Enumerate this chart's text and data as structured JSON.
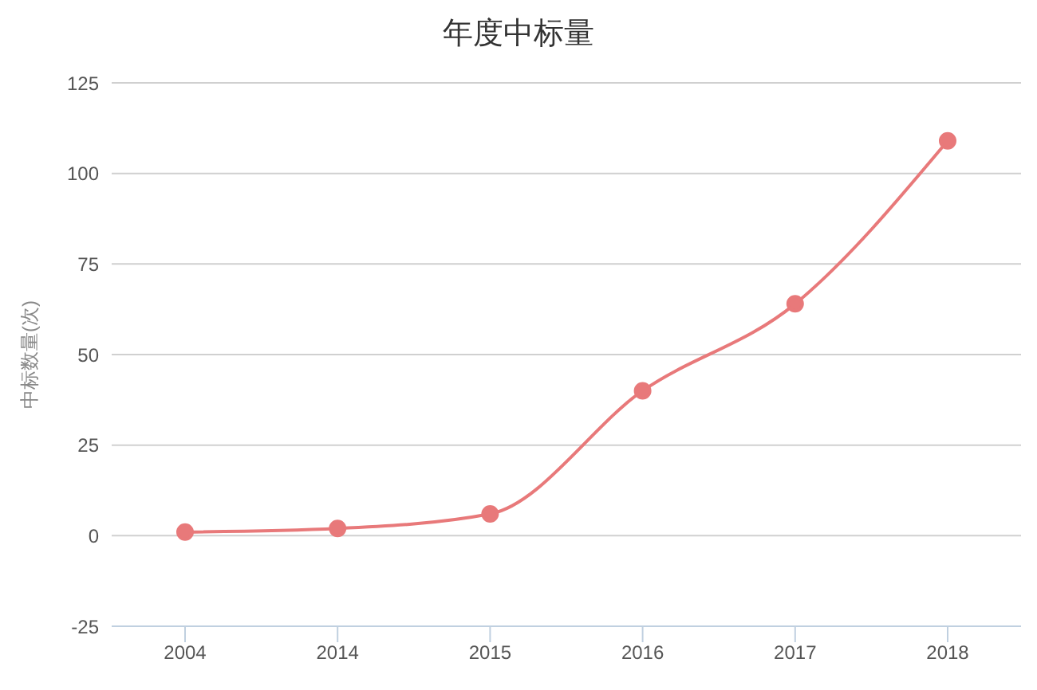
{
  "chart_data": {
    "type": "line",
    "title": "年度中标量",
    "ylabel": "中标数量(次)",
    "categories": [
      "2004",
      "2014",
      "2015",
      "2016",
      "2017",
      "2018"
    ],
    "series": [
      {
        "color": "#e8797a",
        "values": [
          1,
          2,
          6,
          40,
          64,
          109
        ]
      }
    ],
    "ylim": [
      -25,
      125
    ],
    "yticks": [
      -25,
      0,
      25,
      50,
      75,
      100,
      125
    ],
    "grid": "y",
    "marker": "circle"
  }
}
